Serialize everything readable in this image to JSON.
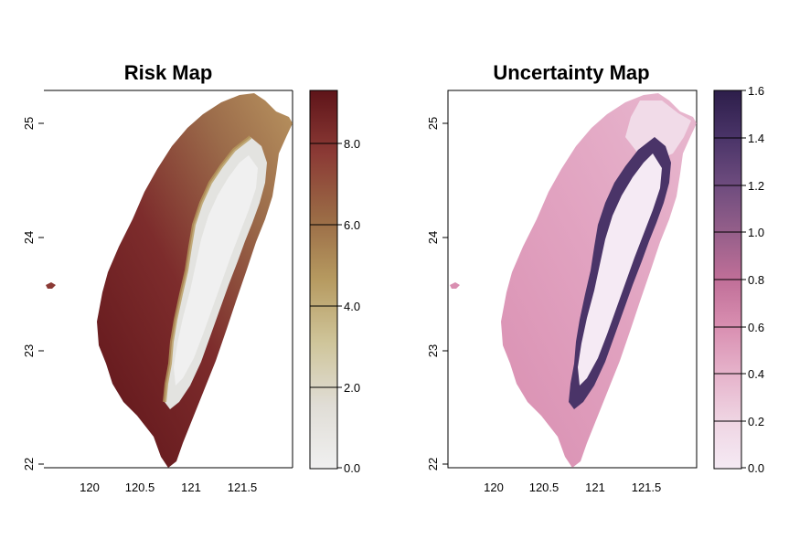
{
  "panels": {
    "risk": {
      "title": "Risk Map",
      "x_ticks": [
        "120",
        "120.5",
        "121",
        "121.5"
      ],
      "y_ticks": [
        "25",
        "24",
        "23",
        "22"
      ],
      "legend_ticks": [
        "8.0",
        "6.0",
        "4.0",
        "2.0",
        "0.0"
      ],
      "legend_colors": [
        "#5e1419",
        "#8b3a35",
        "#9a6a45",
        "#b69a60",
        "#cfc59a",
        "#e0ddd6",
        "#f0f0f0"
      ]
    },
    "uncertainty": {
      "title": "Uncertainty Map",
      "x_ticks": [
        "120",
        "120.5",
        "121",
        "121.5"
      ],
      "y_ticks": [
        "25",
        "24",
        "23",
        "22"
      ],
      "legend_ticks": [
        "1.6",
        "1.4",
        "1.2",
        "1.0",
        "0.8",
        "0.6",
        "0.4",
        "0.2",
        "0.0"
      ],
      "legend_colors": [
        "#2d1e4a",
        "#4a3468",
        "#6e4c7e",
        "#955f8a",
        "#c06f98",
        "#d98fb1",
        "#e6b3cb",
        "#efd5e3",
        "#f5eaf4"
      ]
    }
  }
}
